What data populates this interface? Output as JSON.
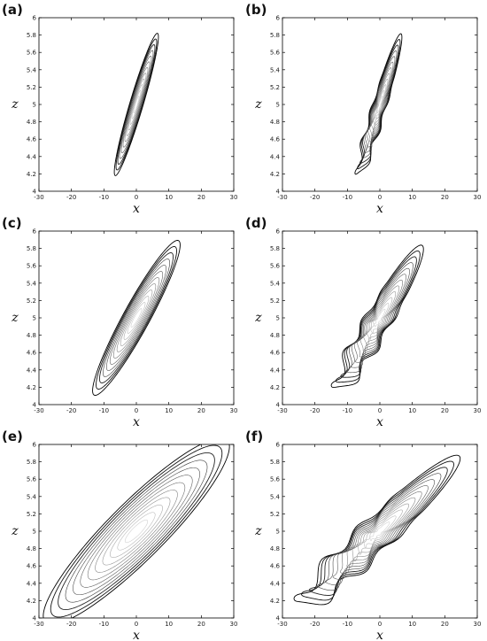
{
  "chart_data": [
    {
      "type": "contour",
      "label": "(a)",
      "xlabel": "x",
      "ylabel": "z",
      "xlim": [
        -30,
        30
      ],
      "ylim": [
        4,
        6
      ],
      "xticks": [
        -30,
        -20,
        -10,
        0,
        10,
        20,
        30
      ],
      "yticks": [
        4,
        4.2,
        4.4,
        4.6,
        4.8,
        5,
        5.2,
        5.4,
        5.6,
        5.8,
        6
      ],
      "center": [
        0,
        5
      ],
      "extent": [
        -6.5,
        6.5,
        4.18,
        5.82
      ],
      "levels": 12,
      "grid": false,
      "wiggly": false
    },
    {
      "type": "contour",
      "label": "(b)",
      "xlabel": "x",
      "ylabel": "z",
      "xlim": [
        -30,
        30
      ],
      "ylim": [
        4,
        6
      ],
      "xticks": [
        -30,
        -20,
        -10,
        0,
        10,
        20,
        30
      ],
      "yticks": [
        4,
        4.2,
        4.4,
        4.6,
        4.8,
        5,
        5.2,
        5.4,
        5.6,
        5.8,
        6
      ],
      "center": [
        0,
        5
      ],
      "extent": [
        -6.5,
        6.5,
        4.17,
        5.8
      ],
      "levels": 12,
      "grid": false,
      "wiggly": true
    },
    {
      "type": "contour",
      "label": "(c)",
      "xlabel": "x",
      "ylabel": "z",
      "xlim": [
        -30,
        30
      ],
      "ylim": [
        4,
        6
      ],
      "xticks": [
        -30,
        -20,
        -10,
        0,
        10,
        20,
        30
      ],
      "yticks": [
        4,
        4.2,
        4.4,
        4.6,
        4.8,
        5,
        5.2,
        5.4,
        5.6,
        5.8,
        6
      ],
      "center": [
        0,
        5
      ],
      "extent": [
        -13,
        13,
        4.12,
        5.9
      ],
      "levels": 12,
      "grid": false,
      "wiggly": false
    },
    {
      "type": "contour",
      "label": "(d)",
      "xlabel": "x",
      "ylabel": "z",
      "xlim": [
        -30,
        30
      ],
      "ylim": [
        4,
        6
      ],
      "xticks": [
        -30,
        -20,
        -10,
        0,
        10,
        20,
        30
      ],
      "yticks": [
        4,
        4.2,
        4.4,
        4.6,
        4.8,
        5,
        5.2,
        5.4,
        5.6,
        5.8,
        6
      ],
      "center": [
        0,
        5
      ],
      "extent": [
        -13,
        13,
        4.18,
        5.85
      ],
      "levels": 12,
      "grid": false,
      "wiggly": true
    },
    {
      "type": "contour",
      "label": "(e)",
      "xlabel": "x",
      "ylabel": "z",
      "xlim": [
        -30,
        30
      ],
      "ylim": [
        4,
        6
      ],
      "xticks": [
        -30,
        -20,
        -10,
        0,
        10,
        20,
        30
      ],
      "yticks": [
        4,
        4.2,
        4.4,
        4.6,
        4.8,
        5,
        5.2,
        5.4,
        5.6,
        5.8,
        6
      ],
      "center": [
        0,
        5
      ],
      "extent": [
        -28,
        28,
        3.95,
        6.05
      ],
      "levels": 12,
      "grid": false,
      "wiggly": false
    },
    {
      "type": "contour",
      "label": "(f)",
      "xlabel": "x",
      "ylabel": "z",
      "xlim": [
        -30,
        30
      ],
      "ylim": [
        4,
        6
      ],
      "xticks": [
        -30,
        -20,
        -10,
        0,
        10,
        20,
        30
      ],
      "yticks": [
        4,
        4.2,
        4.4,
        4.6,
        4.8,
        5,
        5.2,
        5.4,
        5.6,
        5.8,
        6
      ],
      "center": [
        0,
        5
      ],
      "extent": [
        -24,
        25,
        4.15,
        5.88
      ],
      "levels": 12,
      "grid": false,
      "wiggly": true
    }
  ],
  "colors": {
    "contour_outer": "#000000",
    "contour_inner": "#d0d0d0",
    "axis": "#000000"
  }
}
